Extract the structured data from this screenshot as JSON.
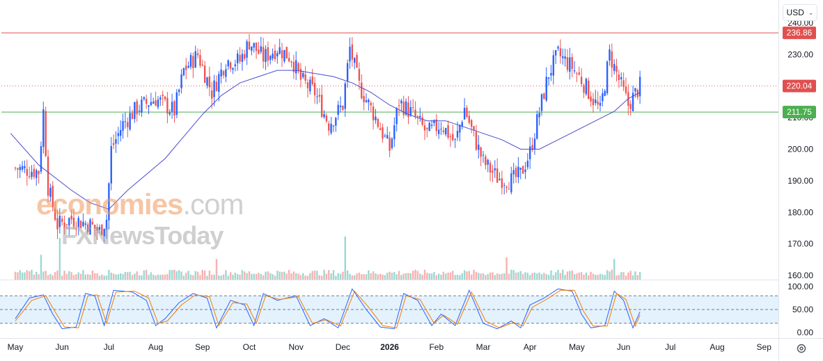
{
  "toolbar": {
    "currency_label": "USD",
    "currency_chevron_icon": "chevron-down-icon",
    "settings_icon": "gear-icon"
  },
  "watermark": {
    "line1_a": "economies",
    "line1_b": ".com",
    "line2": "FXNewsToday"
  },
  "colors": {
    "up": "#2962ff",
    "down": "#ef5350",
    "resistance": "#e05050",
    "support": "#4caf50",
    "ma": "#4a4ad0",
    "stoch_k": "#2962ff",
    "stoch_d": "#f57c00",
    "stoch_band": "#e3f2fd"
  },
  "chart_data": [
    {
      "type": "candlestick",
      "title": "",
      "y_axis": {
        "ticks": [
          "160.00",
          "170.00",
          "180.00",
          "190.00",
          "200.00",
          "210.00",
          "220.00",
          "230.00",
          "240.00"
        ],
        "ylim": [
          159,
          242
        ]
      },
      "x_axis": {
        "ticks": [
          "May",
          "Jun",
          "Jul",
          "Aug",
          "Sep",
          "Oct",
          "Nov",
          "Dec",
          "2026",
          "Feb",
          "Mar",
          "Apr",
          "May",
          "Jun",
          "Jul",
          "Aug",
          "Sep"
        ],
        "bold_tick": "2026"
      },
      "price_labels": [
        {
          "name": "resistance",
          "value": 236.86,
          "label": "236.86"
        },
        {
          "name": "last-price",
          "value": 220.04,
          "label": "220.04"
        },
        {
          "name": "support",
          "value": 211.75,
          "label": "211.75"
        }
      ],
      "close_path": [
        {
          "m": 0.0,
          "v": 194
        },
        {
          "m": 0.5,
          "v": 193
        },
        {
          "m": 0.6,
          "v": 212
        },
        {
          "m": 0.7,
          "v": 188
        },
        {
          "m": 0.9,
          "v": 176
        },
        {
          "m": 1.2,
          "v": 178
        },
        {
          "m": 1.6,
          "v": 176
        },
        {
          "m": 1.8,
          "v": 174
        },
        {
          "m": 1.95,
          "v": 178
        },
        {
          "m": 2.05,
          "v": 200
        },
        {
          "m": 2.3,
          "v": 208
        },
        {
          "m": 2.6,
          "v": 213
        },
        {
          "m": 3.0,
          "v": 216
        },
        {
          "m": 3.4,
          "v": 212
        },
        {
          "m": 3.6,
          "v": 225
        },
        {
          "m": 3.9,
          "v": 230
        },
        {
          "m": 4.2,
          "v": 218
        },
        {
          "m": 4.5,
          "v": 228
        },
        {
          "m": 4.8,
          "v": 228
        },
        {
          "m": 5.0,
          "v": 234
        },
        {
          "m": 5.3,
          "v": 229
        },
        {
          "m": 5.6,
          "v": 232
        },
        {
          "m": 5.9,
          "v": 229
        },
        {
          "m": 6.1,
          "v": 222
        },
        {
          "m": 6.4,
          "v": 218
        },
        {
          "m": 6.7,
          "v": 208
        },
        {
          "m": 7.0,
          "v": 214
        },
        {
          "m": 7.15,
          "v": 232
        },
        {
          "m": 7.35,
          "v": 220
        },
        {
          "m": 7.7,
          "v": 210
        },
        {
          "m": 8.0,
          "v": 200
        },
        {
          "m": 8.2,
          "v": 215
        },
        {
          "m": 8.5,
          "v": 211
        },
        {
          "m": 8.8,
          "v": 205
        },
        {
          "m": 9.1,
          "v": 208
        },
        {
          "m": 9.4,
          "v": 202
        },
        {
          "m": 9.6,
          "v": 213
        },
        {
          "m": 9.8,
          "v": 204
        },
        {
          "m": 10.0,
          "v": 196
        },
        {
          "m": 10.3,
          "v": 191
        },
        {
          "m": 10.6,
          "v": 190
        },
        {
          "m": 10.8,
          "v": 192
        },
        {
          "m": 11.0,
          "v": 199
        },
        {
          "m": 11.2,
          "v": 212
        },
        {
          "m": 11.4,
          "v": 224
        },
        {
          "m": 11.6,
          "v": 230
        },
        {
          "m": 11.9,
          "v": 226
        },
        {
          "m": 12.1,
          "v": 222
        },
        {
          "m": 12.5,
          "v": 212
        },
        {
          "m": 12.7,
          "v": 230
        },
        {
          "m": 12.9,
          "v": 222
        },
        {
          "m": 13.1,
          "v": 214
        },
        {
          "m": 13.35,
          "v": 220
        }
      ],
      "moving_average": [
        {
          "m": -0.1,
          "v": 205
        },
        {
          "m": 0.5,
          "v": 195
        },
        {
          "m": 1.2,
          "v": 187
        },
        {
          "m": 1.6,
          "v": 183
        },
        {
          "m": 2.0,
          "v": 181
        },
        {
          "m": 2.4,
          "v": 187
        },
        {
          "m": 2.8,
          "v": 192
        },
        {
          "m": 3.2,
          "v": 197
        },
        {
          "m": 3.6,
          "v": 204
        },
        {
          "m": 4.0,
          "v": 211
        },
        {
          "m": 4.4,
          "v": 217
        },
        {
          "m": 4.8,
          "v": 221
        },
        {
          "m": 5.2,
          "v": 223
        },
        {
          "m": 5.6,
          "v": 225
        },
        {
          "m": 6.0,
          "v": 225
        },
        {
          "m": 6.4,
          "v": 224
        },
        {
          "m": 6.8,
          "v": 223
        },
        {
          "m": 7.2,
          "v": 221
        },
        {
          "m": 7.6,
          "v": 218
        },
        {
          "m": 8.0,
          "v": 214
        },
        {
          "m": 8.4,
          "v": 211
        },
        {
          "m": 8.8,
          "v": 209
        },
        {
          "m": 9.2,
          "v": 209
        },
        {
          "m": 9.6,
          "v": 207
        },
        {
          "m": 10.0,
          "v": 205
        },
        {
          "m": 10.4,
          "v": 203
        },
        {
          "m": 10.8,
          "v": 200
        },
        {
          "m": 11.2,
          "v": 200
        },
        {
          "m": 11.6,
          "v": 203
        },
        {
          "m": 12.0,
          "v": 206
        },
        {
          "m": 12.4,
          "v": 209
        },
        {
          "m": 12.8,
          "v": 212
        },
        {
          "m": 13.1,
          "v": 216
        },
        {
          "m": 13.35,
          "v": 218
        }
      ],
      "volume_spikes": [
        {
          "m": 0.55,
          "v": 2.5
        },
        {
          "m": 0.95,
          "v": 4.5
        },
        {
          "m": 4.3,
          "v": 2.0
        },
        {
          "m": 7.05,
          "v": 5.5
        },
        {
          "m": 10.5,
          "v": 2.2
        },
        {
          "m": 12.8,
          "v": 2.0
        }
      ]
    },
    {
      "type": "line",
      "title": "",
      "y_axis": {
        "ticks": [
          "100.00",
          "50.00",
          "0.00"
        ],
        "ylim": [
          0,
          100
        ]
      },
      "band": [
        20,
        80
      ],
      "midline": 50,
      "series": [
        {
          "values": [
            {
              "m": 0.0,
              "v": 30
            },
            {
              "m": 0.3,
              "v": 75
            },
            {
              "m": 0.6,
              "v": 82
            },
            {
              "m": 0.8,
              "v": 40
            },
            {
              "m": 1.0,
              "v": 8
            },
            {
              "m": 1.3,
              "v": 12
            },
            {
              "m": 1.5,
              "v": 85
            },
            {
              "m": 1.7,
              "v": 80
            },
            {
              "m": 1.9,
              "v": 15
            },
            {
              "m": 2.1,
              "v": 92
            },
            {
              "m": 2.5,
              "v": 88
            },
            {
              "m": 2.8,
              "v": 70
            },
            {
              "m": 3.0,
              "v": 15
            },
            {
              "m": 3.2,
              "v": 30
            },
            {
              "m": 3.5,
              "v": 65
            },
            {
              "m": 3.8,
              "v": 85
            },
            {
              "m": 4.1,
              "v": 75
            },
            {
              "m": 4.3,
              "v": 10
            },
            {
              "m": 4.6,
              "v": 70
            },
            {
              "m": 4.9,
              "v": 60
            },
            {
              "m": 5.1,
              "v": 15
            },
            {
              "m": 5.3,
              "v": 85
            },
            {
              "m": 5.6,
              "v": 70
            },
            {
              "m": 6.0,
              "v": 80
            },
            {
              "m": 6.3,
              "v": 15
            },
            {
              "m": 6.6,
              "v": 30
            },
            {
              "m": 6.9,
              "v": 10
            },
            {
              "m": 7.2,
              "v": 95
            },
            {
              "m": 7.5,
              "v": 50
            },
            {
              "m": 7.8,
              "v": 12
            },
            {
              "m": 8.1,
              "v": 8
            },
            {
              "m": 8.3,
              "v": 85
            },
            {
              "m": 8.6,
              "v": 70
            },
            {
              "m": 8.9,
              "v": 15
            },
            {
              "m": 9.1,
              "v": 40
            },
            {
              "m": 9.4,
              "v": 15
            },
            {
              "m": 9.7,
              "v": 92
            },
            {
              "m": 10.0,
              "v": 20
            },
            {
              "m": 10.3,
              "v": 8
            },
            {
              "m": 10.6,
              "v": 25
            },
            {
              "m": 10.8,
              "v": 10
            },
            {
              "m": 11.0,
              "v": 60
            },
            {
              "m": 11.3,
              "v": 75
            },
            {
              "m": 11.6,
              "v": 95
            },
            {
              "m": 11.9,
              "v": 90
            },
            {
              "m": 12.1,
              "v": 40
            },
            {
              "m": 12.3,
              "v": 10
            },
            {
              "m": 12.6,
              "v": 15
            },
            {
              "m": 12.8,
              "v": 90
            },
            {
              "m": 13.0,
              "v": 70
            },
            {
              "m": 13.2,
              "v": 10
            },
            {
              "m": 13.35,
              "v": 45
            }
          ]
        },
        {
          "values": [
            {
              "m": 0.0,
              "v": 25
            },
            {
              "m": 0.35,
              "v": 70
            },
            {
              "m": 0.65,
              "v": 80
            },
            {
              "m": 0.85,
              "v": 45
            },
            {
              "m": 1.05,
              "v": 12
            },
            {
              "m": 1.35,
              "v": 10
            },
            {
              "m": 1.55,
              "v": 80
            },
            {
              "m": 1.75,
              "v": 82
            },
            {
              "m": 1.95,
              "v": 20
            },
            {
              "m": 2.15,
              "v": 88
            },
            {
              "m": 2.55,
              "v": 90
            },
            {
              "m": 2.85,
              "v": 75
            },
            {
              "m": 3.05,
              "v": 20
            },
            {
              "m": 3.25,
              "v": 25
            },
            {
              "m": 3.55,
              "v": 60
            },
            {
              "m": 3.85,
              "v": 82
            },
            {
              "m": 4.15,
              "v": 78
            },
            {
              "m": 4.35,
              "v": 15
            },
            {
              "m": 4.65,
              "v": 65
            },
            {
              "m": 4.95,
              "v": 62
            },
            {
              "m": 5.15,
              "v": 20
            },
            {
              "m": 5.35,
              "v": 80
            },
            {
              "m": 5.65,
              "v": 72
            },
            {
              "m": 6.05,
              "v": 78
            },
            {
              "m": 6.35,
              "v": 20
            },
            {
              "m": 6.65,
              "v": 28
            },
            {
              "m": 6.95,
              "v": 14
            },
            {
              "m": 7.25,
              "v": 90
            },
            {
              "m": 7.55,
              "v": 55
            },
            {
              "m": 7.85,
              "v": 15
            },
            {
              "m": 8.15,
              "v": 10
            },
            {
              "m": 8.35,
              "v": 80
            },
            {
              "m": 8.65,
              "v": 72
            },
            {
              "m": 8.95,
              "v": 20
            },
            {
              "m": 9.15,
              "v": 38
            },
            {
              "m": 9.45,
              "v": 18
            },
            {
              "m": 9.75,
              "v": 88
            },
            {
              "m": 10.05,
              "v": 25
            },
            {
              "m": 10.35,
              "v": 10
            },
            {
              "m": 10.65,
              "v": 22
            },
            {
              "m": 10.85,
              "v": 14
            },
            {
              "m": 11.05,
              "v": 55
            },
            {
              "m": 11.35,
              "v": 72
            },
            {
              "m": 11.65,
              "v": 92
            },
            {
              "m": 11.95,
              "v": 92
            },
            {
              "m": 12.15,
              "v": 45
            },
            {
              "m": 12.35,
              "v": 14
            },
            {
              "m": 12.65,
              "v": 14
            },
            {
              "m": 12.85,
              "v": 85
            },
            {
              "m": 13.05,
              "v": 72
            },
            {
              "m": 13.25,
              "v": 14
            },
            {
              "m": 13.35,
              "v": 38
            }
          ]
        }
      ]
    }
  ]
}
